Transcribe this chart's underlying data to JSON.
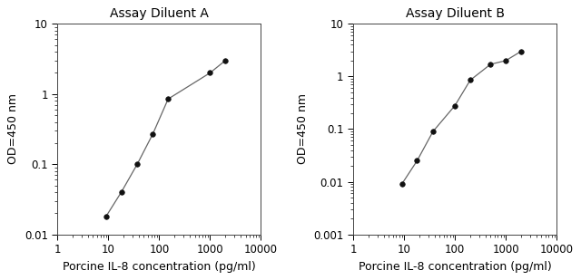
{
  "title_A": "Assay Diluent A",
  "title_B": "Assay Diluent B",
  "xlabel": "Porcine IL-8 concentration (pg/ml)",
  "ylabel": "OD=450 nm",
  "x_A": [
    9,
    18,
    37,
    75,
    150,
    1000,
    2000
  ],
  "y_A": [
    0.018,
    0.04,
    0.1,
    0.27,
    0.85,
    2.0,
    3.0
  ],
  "x_B": [
    9,
    18,
    37,
    100,
    200,
    500,
    1000,
    2000
  ],
  "y_B": [
    0.009,
    0.025,
    0.09,
    0.28,
    0.85,
    1.7,
    2.0,
    3.0
  ],
  "xlim_A": [
    1,
    10000
  ],
  "ylim_A": [
    0.01,
    10
  ],
  "xlim_B": [
    1,
    10000
  ],
  "ylim_B": [
    0.001,
    10
  ],
  "line_color": "#666666",
  "marker_color": "#111111",
  "bg_color": "#ffffff",
  "title_fontsize": 10,
  "label_fontsize": 9,
  "tick_fontsize": 8.5
}
